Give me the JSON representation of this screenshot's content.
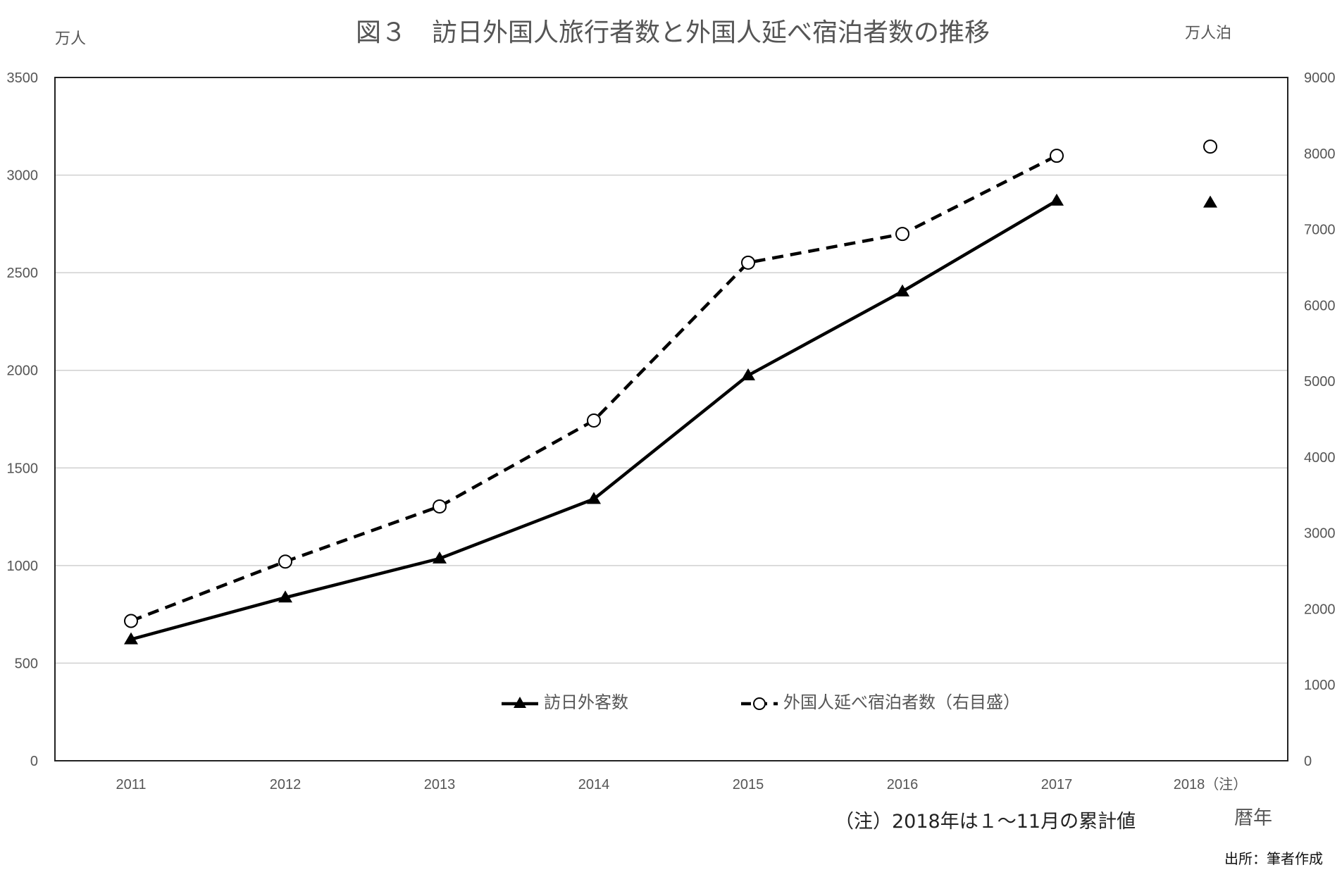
{
  "chart_data": {
    "type": "line",
    "title": "図３　訪日外国人旅行者数と外国人延べ宿泊者数の推移",
    "y_left_unit": "万人",
    "y_right_unit": "万人泊",
    "xlabel": "暦年",
    "categories": [
      "2011",
      "2012",
      "2013",
      "2014",
      "2015",
      "2016",
      "2017",
      "2018（注）"
    ],
    "y_left": {
      "range": [
        0,
        3500
      ],
      "ticks": [
        0,
        500,
        1000,
        1500,
        2000,
        2500,
        3000,
        3500
      ],
      "tick_labels": [
        "0",
        "500",
        "1000",
        "1500",
        "2000",
        "2500",
        "3000",
        "3500"
      ]
    },
    "y_right": {
      "range": [
        0,
        9000
      ],
      "ticks": [
        0,
        1000,
        2000,
        3000,
        4000,
        5000,
        6000,
        7000,
        8000,
        9000
      ],
      "tick_labels": [
        "0",
        "1000",
        "2000",
        "3000",
        "4000",
        "5000",
        "6000",
        "7000",
        "8000",
        "9000"
      ]
    },
    "grid": true,
    "legend_position": "bottom-center inside plot",
    "series": [
      {
        "name": "訪日外客数",
        "axis": "left",
        "style": "solid",
        "marker": "triangle",
        "values": [
          622,
          836,
          1036,
          1341,
          1974,
          2404,
          2869,
          2859
        ],
        "connected_points": 7
      },
      {
        "name": "外国人延べ宿泊者数（右目盛）",
        "axis": "right",
        "style": "dashed",
        "marker": "circle",
        "values": [
          1842,
          2624,
          3350,
          4482,
          6561,
          6939,
          7969,
          8090
        ],
        "connected_points": 7
      }
    ],
    "note": "（注）2018年は１～11月の累計値",
    "source": "出所：筆者作成"
  }
}
